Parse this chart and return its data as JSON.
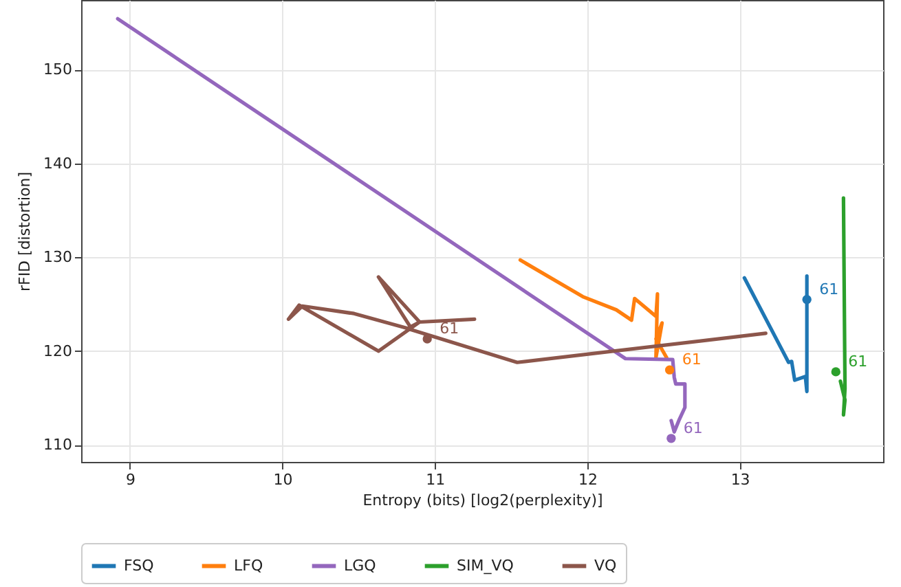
{
  "chart_data": {
    "type": "line",
    "xlabel": "Entropy (bits) [log2(perplexity)]",
    "ylabel": "rFID [distortion]",
    "xlim": [
      8.68,
      13.94
    ],
    "ylim": [
      108.2,
      157.4
    ],
    "xticks": [
      9,
      10,
      11,
      12,
      13
    ],
    "yticks": [
      110,
      120,
      130,
      140,
      150
    ],
    "grid": true,
    "legend": "bottom",
    "series": [
      {
        "name": "FSQ",
        "color": "#1f77b4",
        "x": [
          13.03,
          13.32,
          13.34,
          13.36,
          13.43,
          13.44,
          13.44
        ],
        "values": [
          127.8,
          118.8,
          118.9,
          116.9,
          117.3,
          115.7,
          128.0
        ]
      },
      {
        "name": "LFQ",
        "color": "#ff7f0e",
        "x": [
          11.56,
          11.97,
          12.19,
          12.29,
          12.31,
          12.45,
          12.46,
          12.45,
          12.49,
          12.45,
          12.52
        ],
        "values": [
          129.7,
          125.8,
          124.4,
          123.3,
          125.6,
          123.7,
          126.1,
          119.3,
          123.0,
          121.3,
          119.3
        ]
      },
      {
        "name": "LGQ",
        "color": "#9467bd",
        "x": [
          8.92,
          12.25,
          12.56,
          12.57,
          12.58,
          12.64,
          12.64,
          12.6,
          12.57,
          12.55
        ],
        "values": [
          155.4,
          119.2,
          119.1,
          117.2,
          116.5,
          116.5,
          114.0,
          112.6,
          111.4,
          112.6
        ]
      },
      {
        "name": "SIM_VQ",
        "color": "#2ca02c",
        "x": [
          13.68,
          13.69,
          13.68,
          13.69,
          13.66
        ],
        "values": [
          136.3,
          116.0,
          113.2,
          114.8,
          116.8
        ]
      },
      {
        "name": "VQ",
        "color": "#8c564b",
        "x": [
          11.26,
          10.9,
          10.63,
          10.11,
          10.04,
          10.13,
          10.47,
          10.85,
          10.63,
          10.9,
          10.82,
          11.0,
          11.54,
          13.17
        ],
        "values": [
          123.4,
          123.1,
          120.0,
          124.9,
          123.4,
          124.8,
          124.0,
          122.3,
          127.9,
          123.1,
          122.4,
          121.5,
          118.8,
          121.9
        ]
      },
      {
        "type": "scatter",
        "color": "#1f77b4",
        "x": [
          13.44
        ],
        "values": [
          125.5
        ]
      },
      {
        "type": "scatter",
        "color": "#ff7f0e",
        "x": [
          12.54
        ],
        "values": [
          118.0
        ]
      },
      {
        "type": "scatter",
        "color": "#9467bd",
        "x": [
          12.55
        ],
        "values": [
          110.7
        ]
      },
      {
        "type": "scatter",
        "color": "#2ca02c",
        "x": [
          13.63
        ],
        "values": [
          117.8
        ]
      },
      {
        "type": "scatter",
        "color": "#8c564b",
        "x": [
          10.95
        ],
        "values": [
          121.3
        ]
      }
    ],
    "annotations": [
      {
        "text": "61",
        "x": 13.44,
        "y": 125.5
      },
      {
        "text": "61",
        "x": 12.54,
        "y": 118.0
      },
      {
        "text": "61",
        "x": 12.55,
        "y": 110.7
      },
      {
        "text": "61",
        "x": 13.63,
        "y": 117.8
      },
      {
        "text": "61",
        "x": 10.95,
        "y": 121.3
      }
    ]
  }
}
